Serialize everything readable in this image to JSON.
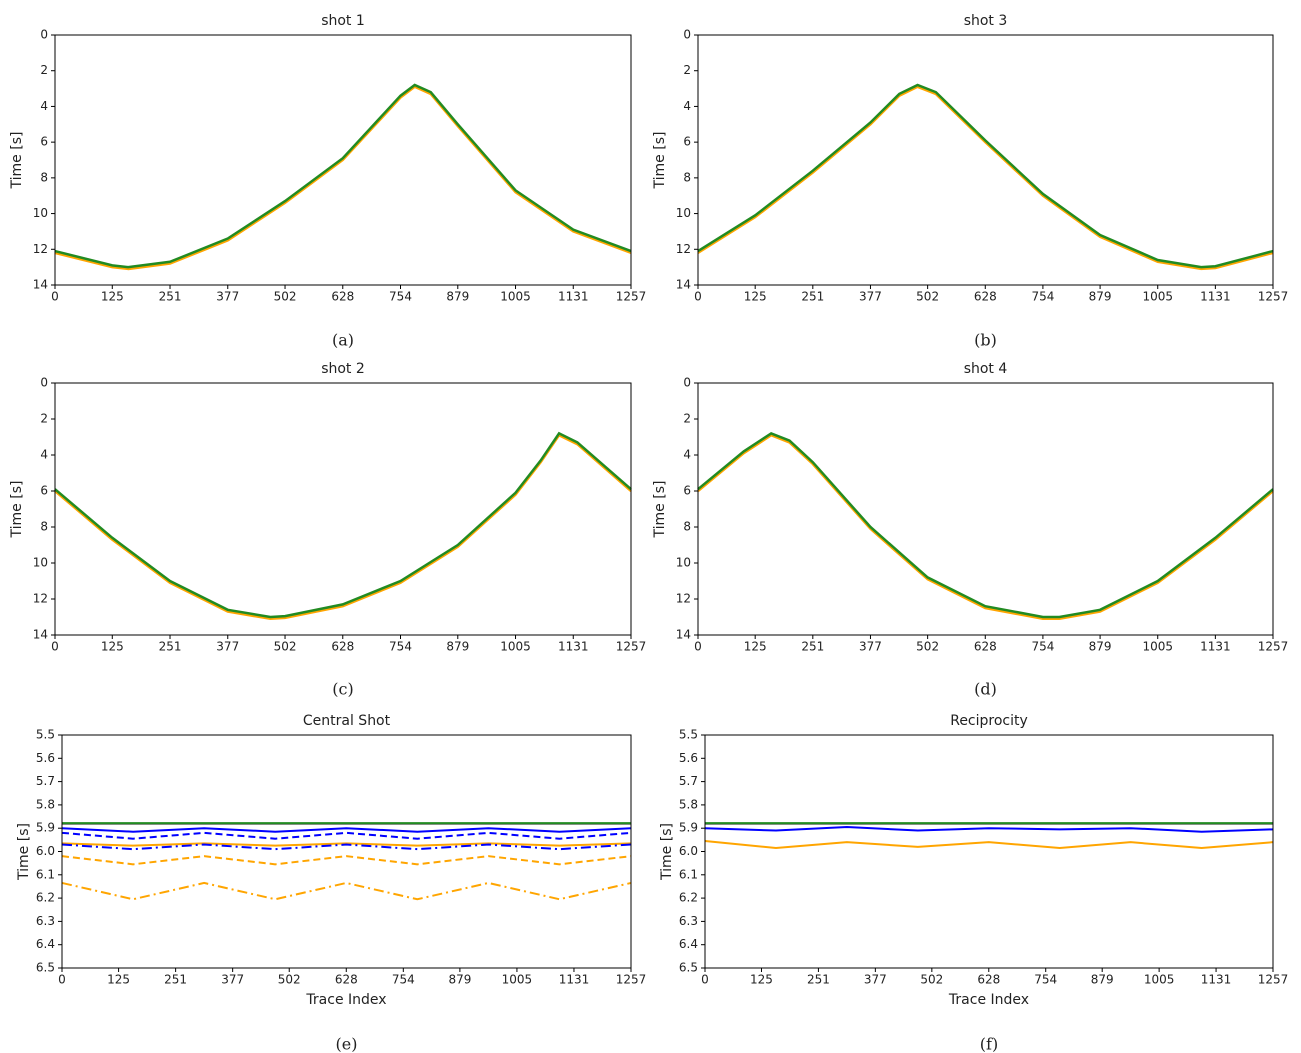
{
  "chart_data": [
    {
      "type": "line",
      "title": "shot 1",
      "ylabel": "Time [s]",
      "caption": "(a)",
      "x": [
        0,
        125,
        160,
        251,
        377,
        502,
        628,
        700,
        754,
        785,
        820,
        879,
        1005,
        1131,
        1257
      ],
      "series": [
        {
          "color": "#ffa500",
          "dash": "solid",
          "values": [
            12.2,
            13.0,
            13.1,
            12.8,
            11.5,
            9.4,
            7.0,
            5.0,
            3.5,
            2.9,
            3.3,
            5.1,
            8.8,
            11.0,
            12.2
          ]
        },
        {
          "color": "#228b22",
          "dash": "solid",
          "values": [
            12.1,
            12.9,
            13.0,
            12.7,
            11.4,
            9.3,
            6.9,
            4.9,
            3.4,
            2.8,
            3.2,
            5.0,
            8.7,
            10.9,
            12.1
          ]
        }
      ],
      "xlim": [
        0,
        1257
      ],
      "xticks": [
        0,
        125,
        251,
        377,
        502,
        628,
        754,
        879,
        1005,
        1131,
        1257
      ],
      "ylim": [
        0,
        14
      ],
      "yticks": [
        0,
        2,
        4,
        6,
        8,
        10,
        12,
        14
      ],
      "y_inverted": true
    },
    {
      "type": "line",
      "title": "shot 3",
      "ylabel": "Time [s]",
      "caption": "(b)",
      "x": [
        0,
        125,
        251,
        377,
        440,
        480,
        520,
        628,
        754,
        879,
        1005,
        1100,
        1131,
        1257
      ],
      "series": [
        {
          "color": "#ffa500",
          "dash": "solid",
          "values": [
            12.2,
            10.2,
            7.7,
            5.0,
            3.4,
            2.9,
            3.3,
            6.0,
            9.0,
            11.3,
            12.7,
            13.1,
            13.05,
            12.2
          ]
        },
        {
          "color": "#228b22",
          "dash": "solid",
          "values": [
            12.1,
            10.1,
            7.6,
            4.9,
            3.3,
            2.8,
            3.2,
            5.9,
            8.9,
            11.2,
            12.6,
            13.0,
            12.95,
            12.1
          ]
        }
      ],
      "xlim": [
        0,
        1257
      ],
      "xticks": [
        0,
        125,
        251,
        377,
        502,
        628,
        754,
        879,
        1005,
        1131,
        1257
      ],
      "ylim": [
        0,
        14
      ],
      "yticks": [
        0,
        2,
        4,
        6,
        8,
        10,
        12,
        14
      ],
      "y_inverted": true
    },
    {
      "type": "line",
      "title": "shot 2",
      "ylabel": "Time [s]",
      "caption": "(c)",
      "x": [
        0,
        125,
        251,
        377,
        470,
        502,
        628,
        754,
        879,
        1005,
        1060,
        1100,
        1140,
        1257
      ],
      "series": [
        {
          "color": "#ffa500",
          "dash": "solid",
          "values": [
            6.0,
            8.7,
            11.1,
            12.7,
            13.1,
            13.05,
            12.4,
            11.1,
            9.1,
            6.2,
            4.4,
            2.9,
            3.4,
            6.0
          ]
        },
        {
          "color": "#228b22",
          "dash": "solid",
          "values": [
            5.9,
            8.6,
            11.0,
            12.6,
            13.0,
            12.95,
            12.3,
            11.0,
            9.0,
            6.1,
            4.3,
            2.8,
            3.3,
            5.9
          ]
        }
      ],
      "xlim": [
        0,
        1257
      ],
      "xticks": [
        0,
        125,
        251,
        377,
        502,
        628,
        754,
        879,
        1005,
        1131,
        1257
      ],
      "ylim": [
        0,
        14
      ],
      "yticks": [
        0,
        2,
        4,
        6,
        8,
        10,
        12,
        14
      ],
      "y_inverted": true
    },
    {
      "type": "line",
      "title": "shot 4",
      "ylabel": "Time [s]",
      "caption": "(d)",
      "x": [
        0,
        100,
        160,
        200,
        251,
        377,
        502,
        628,
        754,
        790,
        879,
        1005,
        1131,
        1257
      ],
      "series": [
        {
          "color": "#ffa500",
          "dash": "solid",
          "values": [
            6.0,
            3.9,
            2.9,
            3.3,
            4.5,
            8.1,
            10.9,
            12.5,
            13.1,
            13.1,
            12.7,
            11.1,
            8.7,
            6.0
          ]
        },
        {
          "color": "#228b22",
          "dash": "solid",
          "values": [
            5.9,
            3.8,
            2.8,
            3.2,
            4.4,
            8.0,
            10.8,
            12.4,
            13.0,
            13.0,
            12.6,
            11.0,
            8.6,
            5.9
          ]
        }
      ],
      "xlim": [
        0,
        1257
      ],
      "xticks": [
        0,
        125,
        251,
        377,
        502,
        628,
        754,
        879,
        1005,
        1131,
        1257
      ],
      "ylim": [
        0,
        14
      ],
      "yticks": [
        0,
        2,
        4,
        6,
        8,
        10,
        12,
        14
      ],
      "y_inverted": true
    },
    {
      "type": "line",
      "title": "Central Shot",
      "ylabel": "Time [s]",
      "xlabel": "Trace Index",
      "caption": "(e)",
      "x": [
        0,
        157,
        314,
        471,
        628,
        785,
        942,
        1099,
        1257
      ],
      "series": [
        {
          "color": "#ffa500",
          "dash": "dashdot",
          "values": [
            6.135,
            6.205,
            6.135,
            6.205,
            6.135,
            6.205,
            6.135,
            6.205,
            6.135
          ]
        },
        {
          "color": "#ffa500",
          "dash": "dashed",
          "values": [
            6.02,
            6.055,
            6.02,
            6.055,
            6.02,
            6.055,
            6.02,
            6.055,
            6.02
          ]
        },
        {
          "color": "#ffa500",
          "dash": "solid",
          "values": [
            5.965,
            5.975,
            5.965,
            5.975,
            5.965,
            5.975,
            5.965,
            5.975,
            5.965
          ]
        },
        {
          "color": "#0000ff",
          "dash": "dashdot",
          "values": [
            5.97,
            5.99,
            5.97,
            5.99,
            5.97,
            5.99,
            5.97,
            5.99,
            5.97
          ]
        },
        {
          "color": "#0000ff",
          "dash": "dashed",
          "values": [
            5.92,
            5.945,
            5.92,
            5.945,
            5.92,
            5.945,
            5.92,
            5.945,
            5.92
          ]
        },
        {
          "color": "#0000ff",
          "dash": "solid",
          "values": [
            5.9,
            5.915,
            5.9,
            5.915,
            5.9,
            5.915,
            5.9,
            5.915,
            5.9
          ]
        },
        {
          "color": "#000000",
          "dash": "solid",
          "values": [
            5.88,
            5.88,
            5.88,
            5.88,
            5.88,
            5.88,
            5.88,
            5.88,
            5.88
          ]
        },
        {
          "color": "#228b22",
          "dash": "solid",
          "values": [
            5.878,
            5.878,
            5.878,
            5.878,
            5.878,
            5.878,
            5.878,
            5.878,
            5.878
          ]
        }
      ],
      "xlim": [
        0,
        1257
      ],
      "xticks": [
        0,
        125,
        251,
        377,
        502,
        628,
        754,
        879,
        1005,
        1131,
        1257
      ],
      "ylim": [
        5.5,
        6.5
      ],
      "yticks": [
        5.5,
        5.6,
        5.7,
        5.8,
        5.9,
        {
          "value": 6,
          "label": "6.0"
        },
        6.1,
        6.2,
        6.3,
        6.4,
        6.5
      ],
      "y_inverted": true
    },
    {
      "type": "line",
      "title": "Reciprocity",
      "ylabel": "Time [s]",
      "xlabel": "Trace Index",
      "caption": "(f)",
      "x": [
        0,
        157,
        314,
        471,
        628,
        785,
        942,
        1099,
        1257
      ],
      "series": [
        {
          "color": "#ffa500",
          "dash": "solid",
          "values": [
            5.955,
            5.985,
            5.96,
            5.98,
            5.96,
            5.985,
            5.96,
            5.985,
            5.96
          ]
        },
        {
          "color": "#0000ff",
          "dash": "solid",
          "values": [
            5.9,
            5.91,
            5.895,
            5.91,
            5.9,
            5.905,
            5.9,
            5.915,
            5.905
          ]
        },
        {
          "color": "#000000",
          "dash": "solid",
          "values": [
            5.88,
            5.88,
            5.88,
            5.88,
            5.88,
            5.88,
            5.88,
            5.88,
            5.88
          ]
        },
        {
          "color": "#228b22",
          "dash": "solid",
          "values": [
            5.878,
            5.878,
            5.878,
            5.878,
            5.878,
            5.878,
            5.878,
            5.878,
            5.878
          ]
        }
      ],
      "xlim": [
        0,
        1257
      ],
      "xticks": [
        0,
        125,
        251,
        377,
        502,
        628,
        754,
        879,
        1005,
        1131,
        1257
      ],
      "ylim": [
        5.5,
        6.5
      ],
      "yticks": [
        5.5,
        5.6,
        5.7,
        5.8,
        5.9,
        {
          "value": 6,
          "label": "6.0"
        },
        6.1,
        6.2,
        6.3,
        6.4,
        6.5
      ],
      "y_inverted": true
    }
  ]
}
